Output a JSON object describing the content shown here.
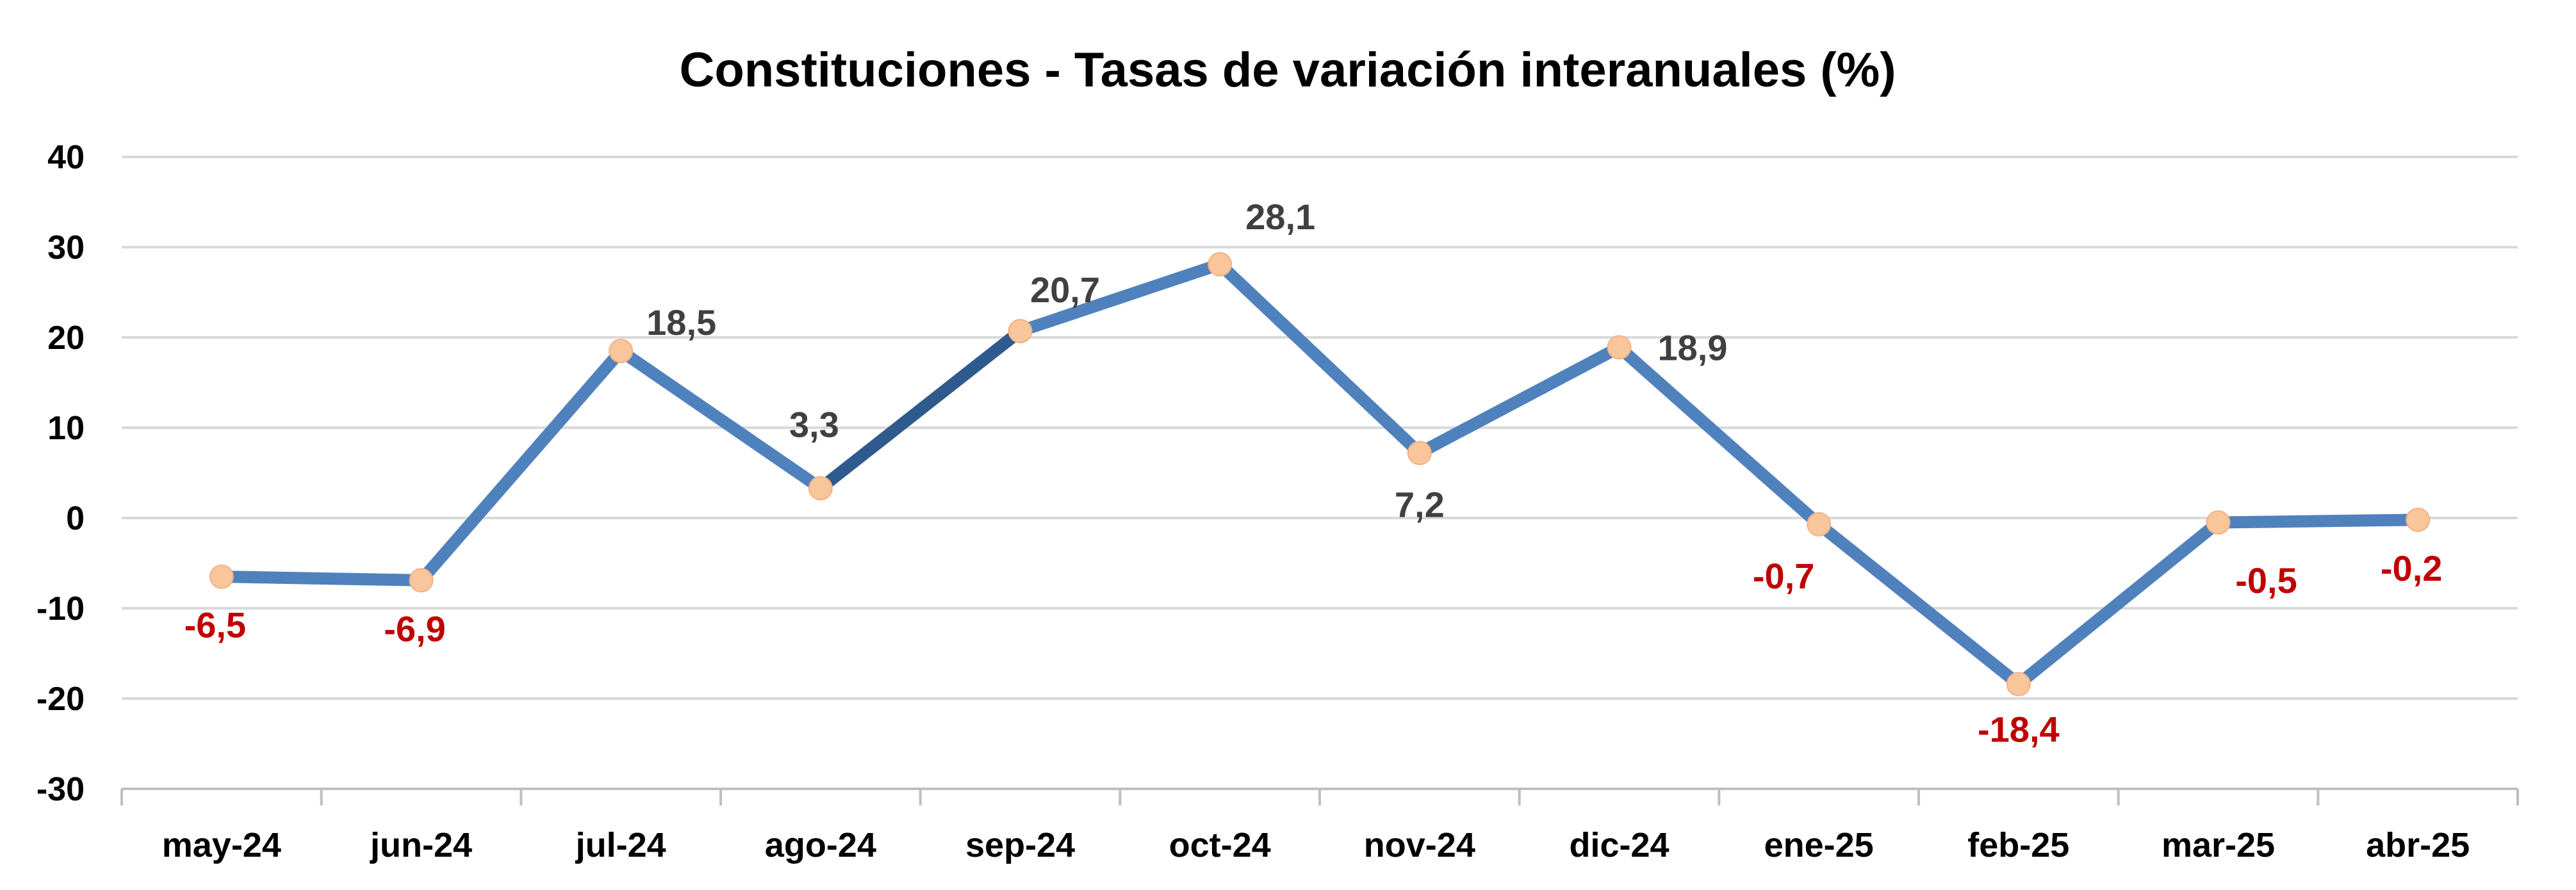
{
  "chart_data": {
    "type": "line",
    "title": "Constituciones - Tasas de variación interanuales (%)",
    "xlabel": "",
    "ylabel": "",
    "ylim": [
      -30,
      40
    ],
    "yticks": [
      "40",
      "30",
      "20",
      "10",
      "0",
      "-10",
      "-20",
      "-30"
    ],
    "grid": true,
    "legend": "none",
    "categories": [
      "may-24",
      "jun-24",
      "jul-24",
      "ago-24",
      "sep-24",
      "oct-24",
      "nov-24",
      "dic-24",
      "ene-25",
      "feb-25",
      "mar-25",
      "abr-25"
    ],
    "series": [
      {
        "values": [
          -6.5,
          -6.9,
          18.5,
          3.3,
          20.7,
          28.1,
          7.2,
          18.9,
          -0.7,
          -18.4,
          -0.5,
          -0.2
        ],
        "labels": [
          "-6,5",
          "-6,9",
          "18,5",
          "3,3",
          "20,7",
          "28,1",
          "7,2",
          "18,9",
          "-0,7",
          "-18,4",
          "-0,5",
          "-0,2"
        ]
      }
    ],
    "colors": {
      "line": "#4F81BD",
      "line_highlight": "#2F5A8E",
      "marker": "#F9C69B",
      "label_positive": "#404040",
      "label_negative": "#C00000",
      "grid": "#D9D9D9",
      "axis": "#BFBFBF"
    }
  }
}
